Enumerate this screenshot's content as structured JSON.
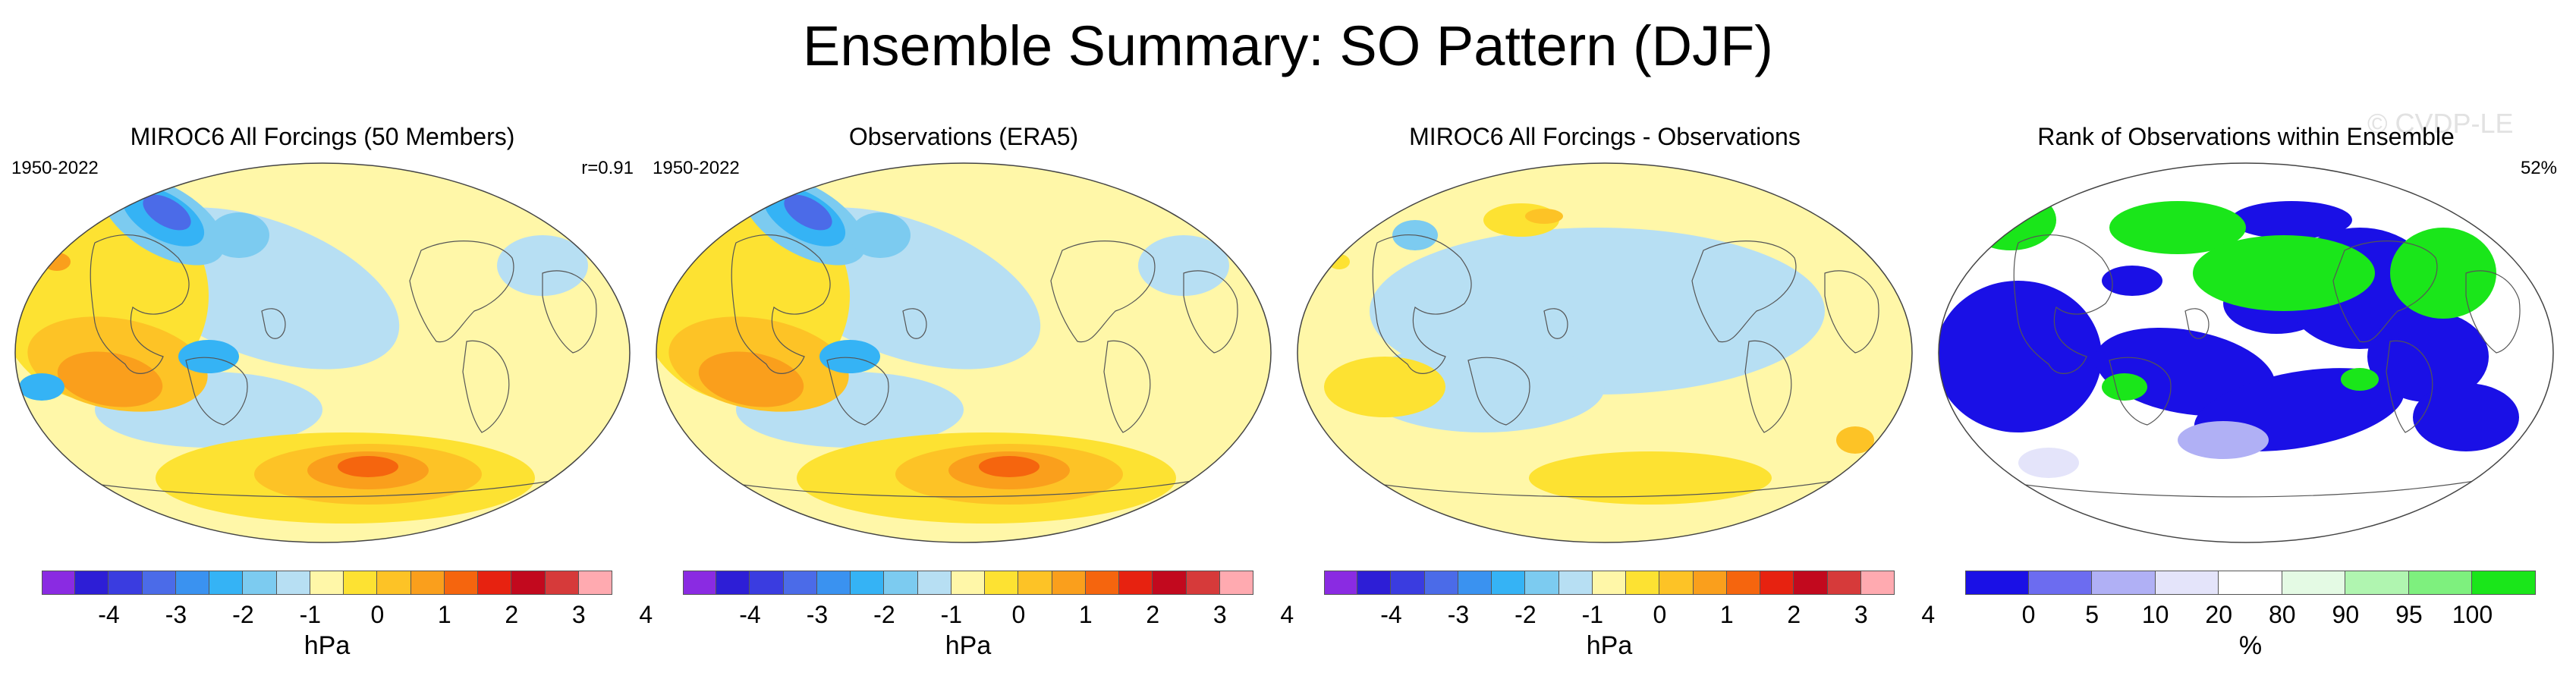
{
  "figure": {
    "title": "Ensemble Summary: SO Pattern (DJF)",
    "watermark": "© CVDP-LE"
  },
  "panels": [
    {
      "title": "MIROC6 All Forcings (50 Members)",
      "period": "1950-2022",
      "stat": "r=0.91",
      "kind": "ensemble"
    },
    {
      "title": "Observations (ERA5)",
      "period": "1950-2022",
      "stat": "",
      "kind": "obs"
    },
    {
      "title": "MIROC6 All Forcings - Observations",
      "period": "",
      "stat": "",
      "kind": "diff"
    },
    {
      "title": "Rank of Observations within Ensemble",
      "period": "",
      "stat": "52%",
      "kind": "rank"
    }
  ],
  "colorbars": {
    "pressure": {
      "unit": "hPa",
      "colors": [
        "#8a2be2",
        "#2d1ed6",
        "#3a3ce0",
        "#4b6be8",
        "#3a92f0",
        "#35b3f5",
        "#7ccbf0",
        "#b7dff3",
        "#fff7a8",
        "#fde232",
        "#fdc326",
        "#fa9f1c",
        "#f5650e",
        "#e72210",
        "#c2091e",
        "#d63a3a",
        "#ffaab0"
      ],
      "ticks": [
        "-4",
        "-3",
        "-2",
        "-1",
        "0",
        "1",
        "2",
        "3",
        "4"
      ]
    },
    "rank": {
      "unit": "%",
      "colors": [
        "#1a10e6",
        "#6c6cf0",
        "#b0b0f5",
        "#e4e4fa",
        "#ffffff",
        "#e4fae4",
        "#b0f5b0",
        "#7ef07e",
        "#1ae61a"
      ],
      "ticks": [
        "0",
        "5",
        "10",
        "20",
        "80",
        "90",
        "95",
        "100"
      ]
    }
  }
}
